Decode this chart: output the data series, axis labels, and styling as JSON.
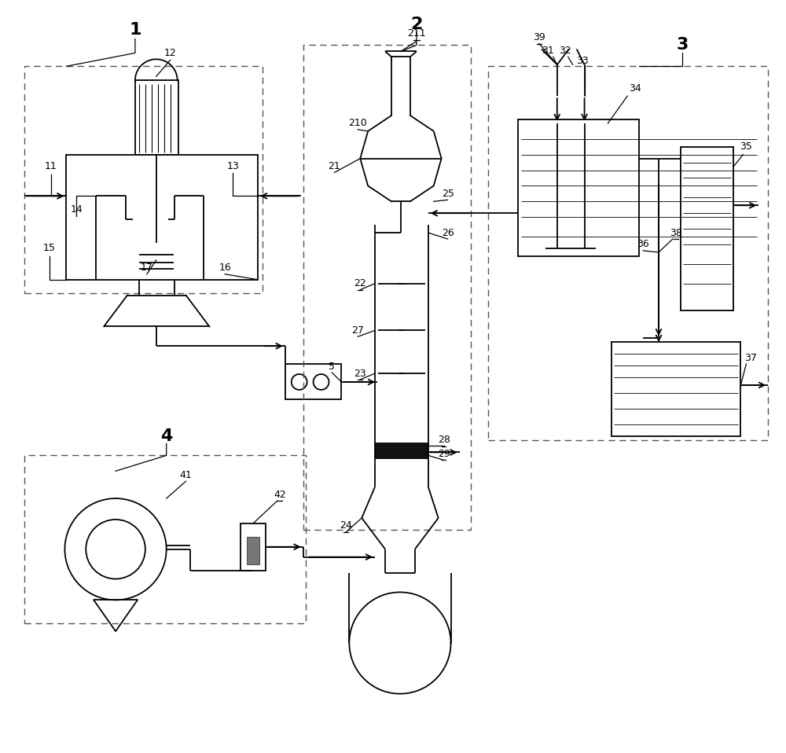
{
  "fig_width": 10.0,
  "fig_height": 9.58,
  "bg_color": "#ffffff",
  "lc": "#000000",
  "lw": 1.3,
  "thin_lw": 0.7,
  "dash_pat": [
    6,
    4
  ]
}
